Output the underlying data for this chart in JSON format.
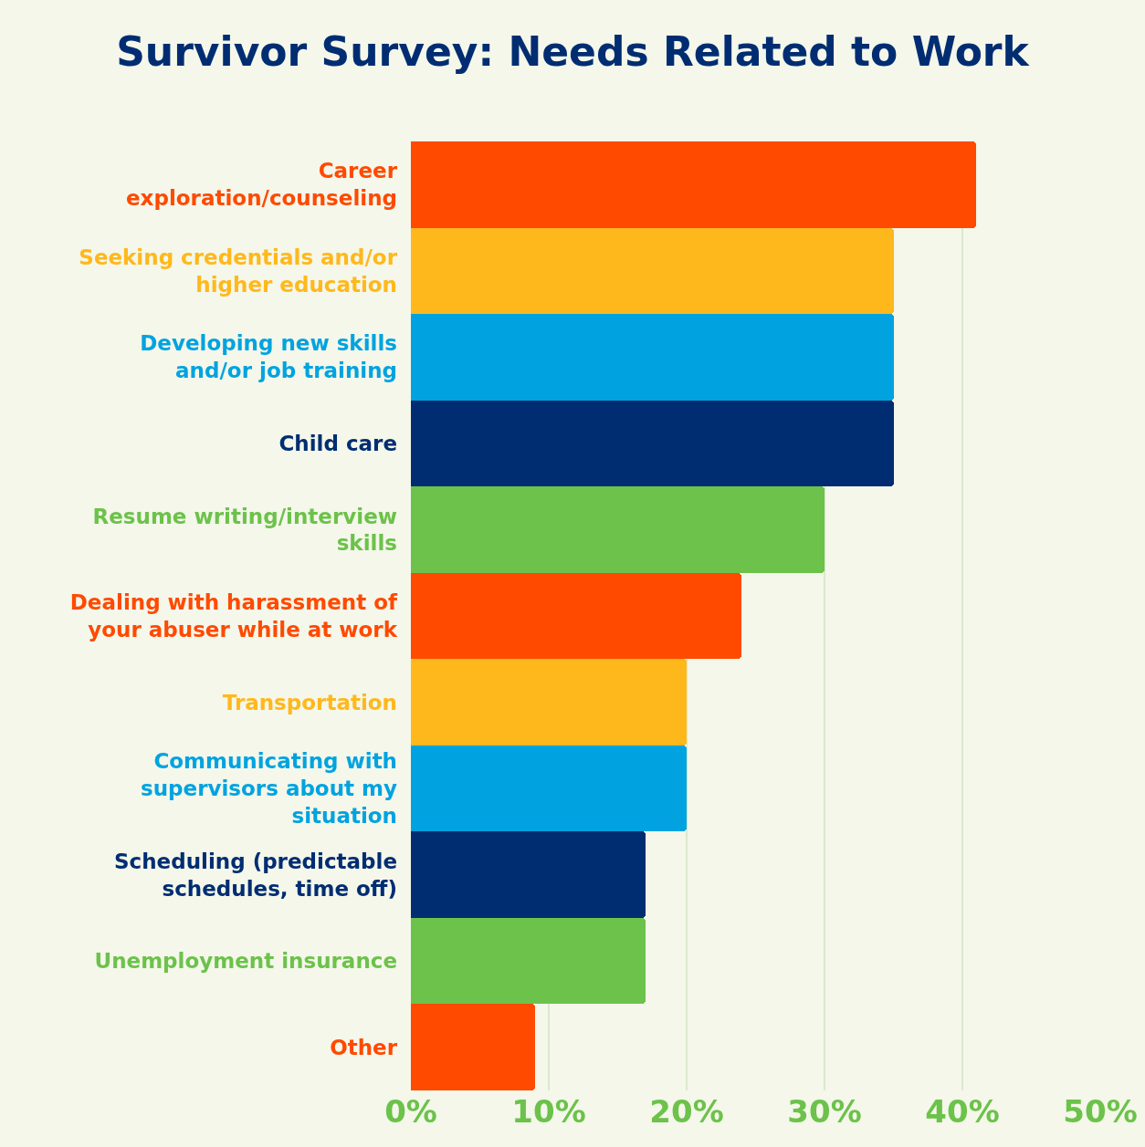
{
  "chart_data": {
    "type": "bar",
    "title": "Survivor Survey: Needs Related to Work",
    "orientation": "horizontal",
    "categories": [
      "Career exploration/counseling",
      "Seeking credentials and/or higher education",
      "Developing new skills and/or job training",
      "Child care",
      "Resume writing/interview skills",
      "Dealing with harassment of your abuser while at work",
      "Transportation",
      "Communicating with supervisors about my situation",
      "Scheduling (predictable schedules, time off)",
      "Unemployment insurance",
      "Other"
    ],
    "values": [
      41,
      35,
      35,
      35,
      30,
      24,
      20,
      20,
      17,
      17,
      9
    ],
    "colors": [
      "#ff4a00",
      "#ffb81c",
      "#00a3e0",
      "#002d72",
      "#6cc24a",
      "#ff4a00",
      "#ffb81c",
      "#00a3e0",
      "#002d72",
      "#6cc24a",
      "#ff4a00"
    ],
    "xlim": [
      0,
      50
    ],
    "xticks": [
      {
        "value": 0,
        "label": "0%"
      },
      {
        "value": 10,
        "label": "10%"
      },
      {
        "value": 20,
        "label": "20%"
      },
      {
        "value": 30,
        "label": "30%"
      },
      {
        "value": 40,
        "label": "40%"
      },
      {
        "value": 50,
        "label": "50%"
      }
    ],
    "grid": "x"
  }
}
